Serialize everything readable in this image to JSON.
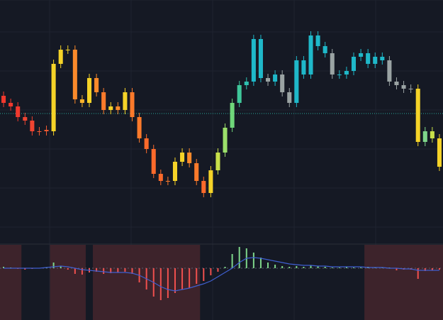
{
  "chart_data": [
    {
      "type": "candlestick",
      "ylim": [
        0,
        345
      ],
      "hline": 185,
      "hline_color": "#26a69a",
      "grid": true,
      "open": [
        210,
        200,
        195,
        180,
        175,
        160,
        162,
        160,
        255,
        275,
        275,
        205,
        200,
        235,
        215,
        190,
        195,
        190,
        215,
        180,
        150,
        135,
        100,
        90,
        90,
        117,
        130,
        115,
        90,
        73,
        105,
        130,
        165,
        200,
        225,
        230,
        290,
        235,
        230,
        240,
        215,
        200,
        260,
        240,
        295,
        280,
        270,
        240,
        240,
        245,
        265,
        270,
        255,
        265,
        260,
        230,
        225,
        220,
        220,
        145,
        160,
        150
      ],
      "high": [
        216,
        206,
        201,
        186,
        181,
        166,
        168,
        261,
        281,
        281,
        281,
        211,
        241,
        241,
        221,
        201,
        201,
        221,
        221,
        186,
        156,
        141,
        106,
        96,
        123,
        136,
        136,
        121,
        96,
        111,
        136,
        171,
        206,
        231,
        236,
        296,
        296,
        241,
        246,
        246,
        221,
        266,
        266,
        301,
        301,
        286,
        276,
        246,
        251,
        271,
        276,
        276,
        271,
        271,
        266,
        236,
        231,
        226,
        226,
        166,
        166,
        156
      ],
      "low": [
        194,
        189,
        174,
        169,
        154,
        154,
        154,
        154,
        249,
        269,
        199,
        194,
        194,
        209,
        184,
        184,
        184,
        184,
        174,
        144,
        129,
        94,
        84,
        84,
        84,
        111,
        109,
        84,
        67,
        67,
        99,
        124,
        159,
        194,
        219,
        224,
        229,
        224,
        224,
        209,
        194,
        194,
        234,
        234,
        274,
        264,
        234,
        234,
        234,
        239,
        259,
        249,
        249,
        254,
        224,
        219,
        214,
        214,
        139,
        139,
        144,
        104
      ],
      "close": [
        200,
        195,
        180,
        175,
        160,
        160,
        160,
        255,
        275,
        275,
        205,
        200,
        235,
        215,
        190,
        195,
        190,
        215,
        180,
        150,
        135,
        100,
        90,
        90,
        117,
        130,
        115,
        90,
        73,
        105,
        130,
        165,
        200,
        225,
        230,
        290,
        235,
        230,
        240,
        215,
        200,
        260,
        240,
        295,
        280,
        270,
        240,
        240,
        245,
        265,
        270,
        255,
        265,
        260,
        230,
        225,
        220,
        220,
        145,
        160,
        150,
        110
      ],
      "colors": [
        "#f0392e",
        "#f0392e",
        "#f0392e",
        "#ef4431",
        "#ef4431",
        "#f05a32",
        "#f05a32",
        "#f5d328",
        "#f5d328",
        "#f5d328",
        "#fb8a2b",
        "#fbb22b",
        "#f5d328",
        "#fb8a2b",
        "#fb7a2b",
        "#f5d328",
        "#fb8a2b",
        "#f5d328",
        "#fb7a2b",
        "#fb7a2b",
        "#fb6a2b",
        "#fb6a2b",
        "#fb6a2b",
        "#fb7a2b",
        "#f5d328",
        "#f5d328",
        "#fb8a2b",
        "#fb7a2b",
        "#fb6a2b",
        "#f5d328",
        "#c8e04a",
        "#9be06a",
        "#6fd77a",
        "#3fc79a",
        "#2ec0b0",
        "#1fb8c9",
        "#1fb8c9",
        "#9aa3a3",
        "#1fb8c9",
        "#9aa3a3",
        "#9aa3a3",
        "#1fb8c9",
        "#1fb8c9",
        "#1fb8c9",
        "#1fb8c9",
        "#1fb8c9",
        "#9aa3a3",
        "#1fb8c9",
        "#1fb8c9",
        "#1fb8c9",
        "#1fb8c9",
        "#1fb8c9",
        "#1fb8c9",
        "#1fb8c9",
        "#9aa3a3",
        "#9aa3a3",
        "#9aa3a3",
        "#9aa3a3",
        "#f5d328",
        "#7ed68a",
        "#c8e04a",
        "#f5d328"
      ]
    },
    {
      "type": "histogram",
      "ylim": [
        -73,
        33
      ],
      "shade_color": "#3d232b",
      "shaded_ranges": [
        [
          0,
          2
        ],
        [
          7,
          11
        ],
        [
          13,
          27
        ],
        [
          51,
          61
        ]
      ],
      "positive_color": "#7ed68a",
      "negative_color": "#f0504e",
      "line_color": "#3f5fd0",
      "values": [
        2,
        1,
        -1,
        -2,
        -1,
        0,
        1,
        8,
        3,
        -2,
        -8,
        -9,
        -6,
        -5,
        -8,
        -7,
        -6,
        -5,
        -8,
        -20,
        -30,
        -40,
        -45,
        -42,
        -35,
        -30,
        -28,
        -22,
        -18,
        -10,
        -5,
        2,
        20,
        30,
        28,
        22,
        15,
        8,
        5,
        3,
        2,
        3,
        2,
        4,
        3,
        2,
        1,
        1,
        2,
        1,
        1,
        2,
        1,
        1,
        1,
        -3,
        -2,
        -2,
        -15,
        -4,
        -3,
        -2
      ],
      "signal": [
        0,
        0,
        0,
        0,
        0,
        0,
        1,
        2,
        3,
        2,
        0,
        -2,
        -3,
        -4,
        -5,
        -6,
        -6,
        -6,
        -7,
        -10,
        -15,
        -20,
        -26,
        -30,
        -32,
        -30,
        -28,
        -25,
        -22,
        -18,
        -12,
        -6,
        0,
        8,
        14,
        15,
        14,
        12,
        10,
        8,
        6,
        5,
        4,
        4,
        3,
        3,
        2,
        2,
        2,
        2,
        2,
        1,
        1,
        1,
        0,
        0,
        -1,
        -1,
        -3,
        -3,
        -3,
        -3
      ]
    }
  ]
}
